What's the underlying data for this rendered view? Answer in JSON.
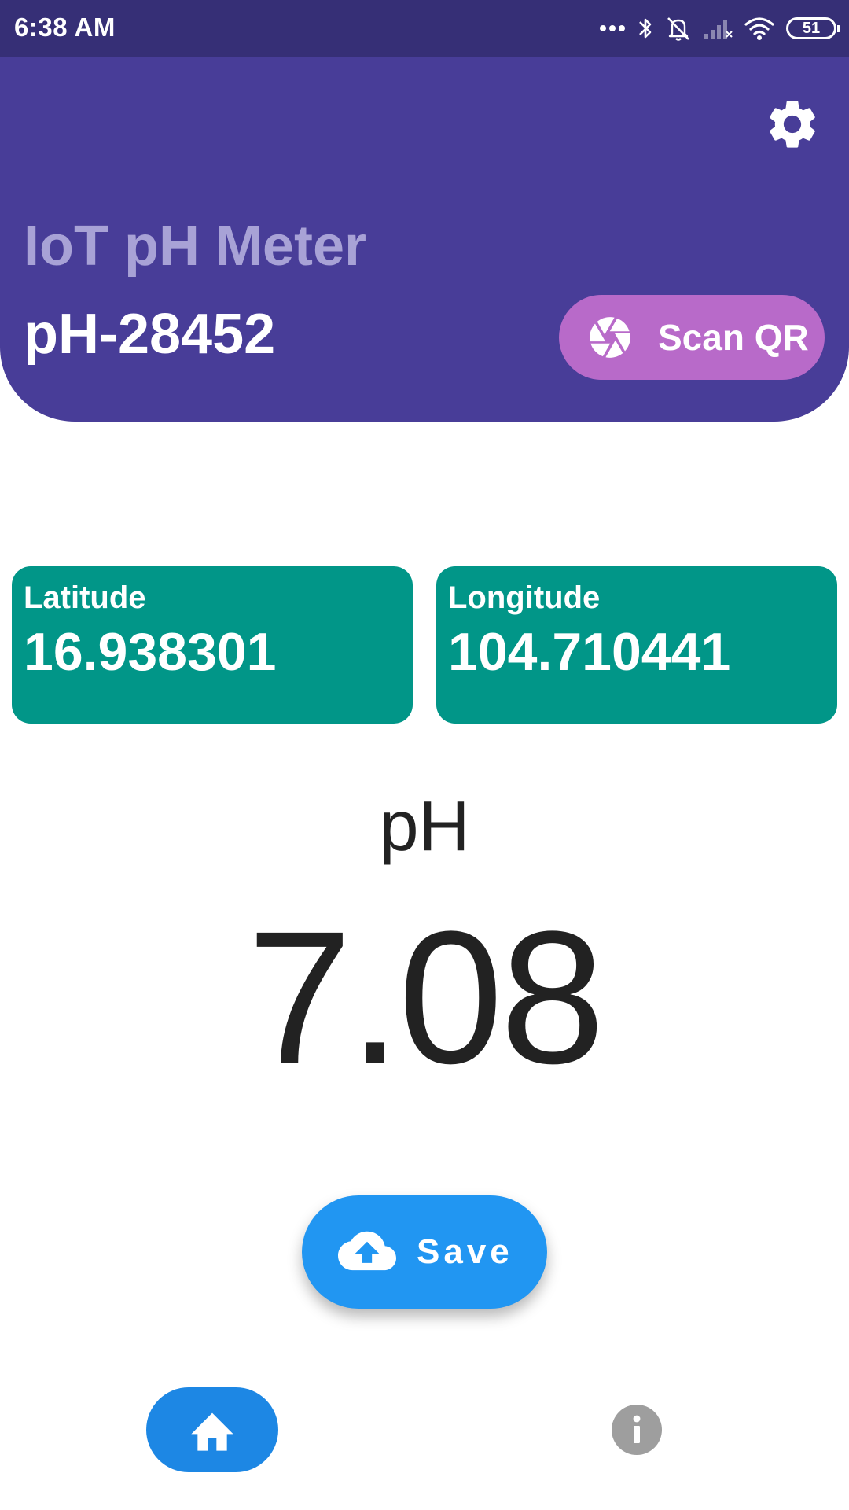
{
  "status_bar": {
    "time": "6:38 AM",
    "battery": "51",
    "icons": [
      "more-dots-icon",
      "bluetooth-icon",
      "alarm-off-icon",
      "signal-icon",
      "wifi-icon",
      "battery-icon"
    ]
  },
  "header": {
    "app_title": "IoT pH Meter",
    "device_id": "pH-28452",
    "settings_icon": "gear-icon",
    "scan_button": {
      "label": "Scan QR",
      "icon": "camera-shutter-icon"
    }
  },
  "location": {
    "latitude": {
      "label": "Latitude",
      "value": "16.938301"
    },
    "longitude": {
      "label": "Longitude",
      "value": "104.710441"
    }
  },
  "reading": {
    "label": "pH",
    "value": "7.08"
  },
  "save_button": {
    "label": "Save",
    "icon": "cloud-upload-icon"
  },
  "bottom_nav": {
    "items": [
      {
        "name": "home",
        "icon": "home-icon",
        "active": true
      },
      {
        "name": "info",
        "icon": "info-icon",
        "active": false
      }
    ]
  },
  "colors": {
    "status_bar": "#362f76",
    "header": "#483d98",
    "header_title": "#a8a2d6",
    "scan_button": "#b86ac9",
    "card": "#019688",
    "save_button": "#2196f2",
    "nav_active": "#1d87e4",
    "nav_inactive": "#9e9e9e"
  }
}
